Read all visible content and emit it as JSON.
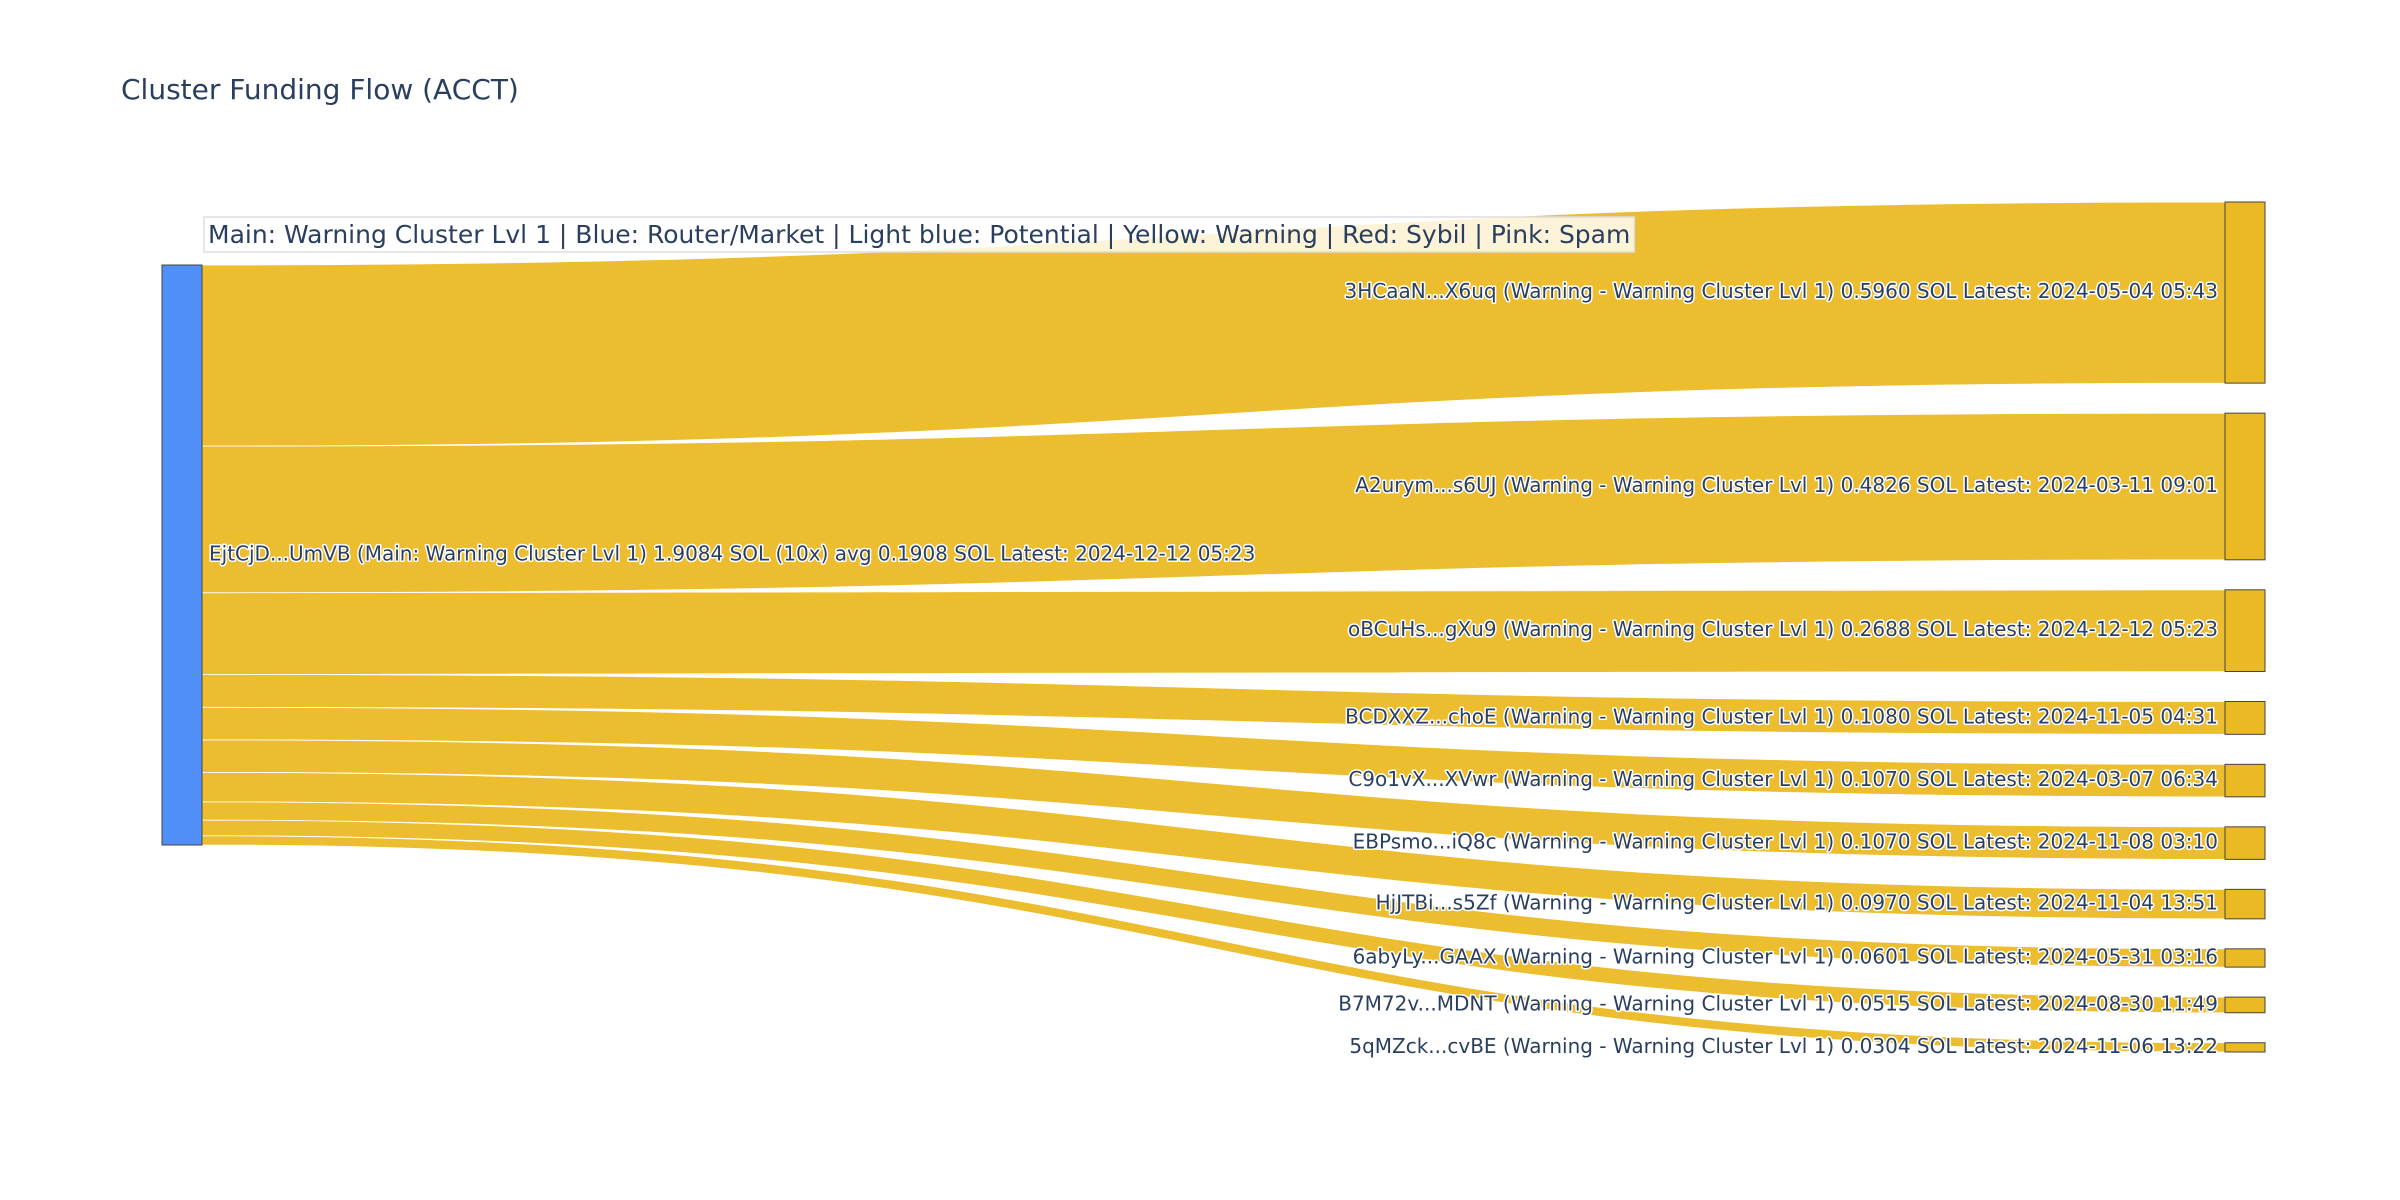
{
  "chart_data": {
    "type": "sankey",
    "title": "Cluster Funding Flow (ACCT)",
    "annotation": "Main: Warning Cluster Lvl 1  |  Blue: Router/Market | Light blue: Potential | Yellow: Warning | Red: Sybil | Pink: Spam",
    "link_color": "#ebb923",
    "source": {
      "label": "EjtCjD...UmVB (Main: Warning Cluster Lvl 1) 1.9084 SOL (10x) avg 0.1908 SOL Latest: 2024-12-12 05:23",
      "color": "#4f8ff7"
    },
    "target_color": "#ebb923",
    "targets": [
      {
        "label": "3HCaaN...X6uq (Warning - Warning Cluster Lvl 1) 0.5960 SOL Latest: 2024-05-04 05:43",
        "value": 0.596
      },
      {
        "label": "A2urym...s6UJ (Warning - Warning Cluster Lvl 1) 0.4826 SOL Latest: 2024-03-11 09:01",
        "value": 0.4826
      },
      {
        "label": "oBCuHs...gXu9 (Warning - Warning Cluster Lvl 1) 0.2688 SOL Latest: 2024-12-12 05:23",
        "value": 0.2688
      },
      {
        "label": "BCDXXZ...choE (Warning - Warning Cluster Lvl 1) 0.1080 SOL Latest: 2024-11-05 04:31",
        "value": 0.108
      },
      {
        "label": "C9o1vX...XVwr (Warning - Warning Cluster Lvl 1) 0.1070 SOL Latest: 2024-03-07 06:34",
        "value": 0.107
      },
      {
        "label": "EBPsmo...iQ8c (Warning - Warning Cluster Lvl 1) 0.1070 SOL Latest: 2024-11-08 03:10",
        "value": 0.107
      },
      {
        "label": "HjJTBi...s5Zf (Warning - Warning Cluster Lvl 1) 0.0970 SOL Latest: 2024-11-04 13:51",
        "value": 0.097
      },
      {
        "label": "6abyLy...GAAX (Warning - Warning Cluster Lvl 1) 0.0601 SOL Latest: 2024-05-31 03:16",
        "value": 0.0601
      },
      {
        "label": "B7M72v...MDNT (Warning - Warning Cluster Lvl 1) 0.0515 SOL Latest: 2024-08-30 11:49",
        "value": 0.0515
      },
      {
        "label": "5qMZck...cvBE (Warning - Warning Cluster Lvl 1) 0.0304 SOL Latest: 2024-11-06 13:22",
        "value": 0.0304
      }
    ]
  }
}
